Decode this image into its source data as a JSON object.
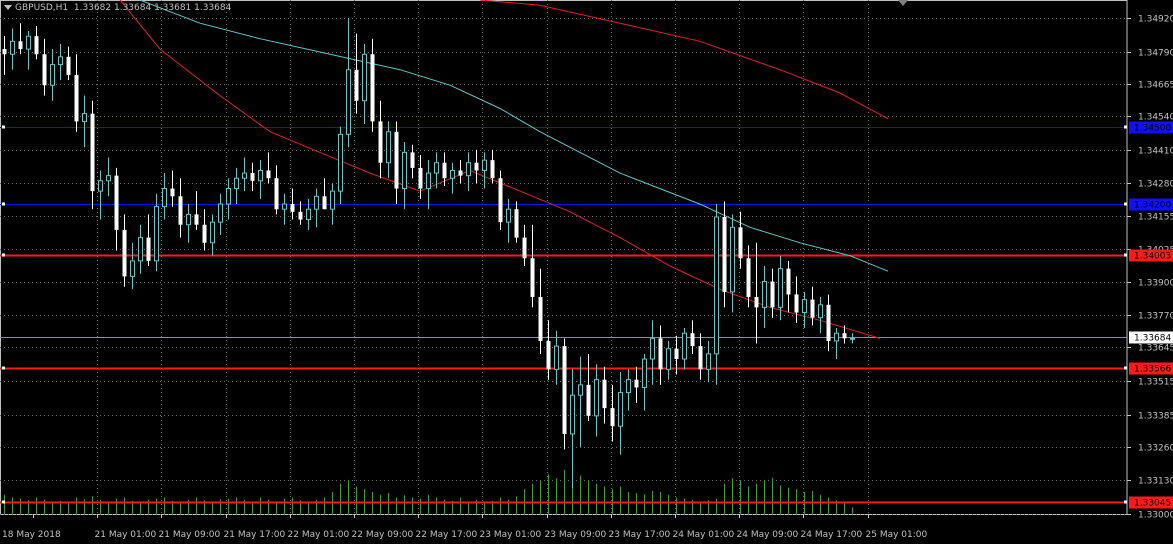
{
  "header": {
    "symbol": "GBPUSD,H1",
    "ohlc": "1.33682 1.33684 1.33681 1.33684"
  },
  "chart_data": {
    "type": "candlestick",
    "symbol": "GBPUSD",
    "timeframe": "H1",
    "ylim": [
      1.33,
      1.3499
    ],
    "yticks": [
      "1.34920",
      "1.34790",
      "1.34665",
      "1.34540",
      "1.34410",
      "1.34280",
      "1.34155",
      "1.34025",
      "1.33900",
      "1.33770",
      "1.33645",
      "1.33515",
      "1.33385",
      "1.33260",
      "1.33130",
      "1.33000"
    ],
    "xticks": [
      "18 May 2018",
      "21 May 01:00",
      "21 May 09:00",
      "21 May 17:00",
      "22 May 01:00",
      "22 May 09:00",
      "22 May 17:00",
      "23 May 01:00",
      "23 May 09:00",
      "23 May 17:00",
      "24 May 01:00",
      "24 May 09:00",
      "24 May 17:00",
      "25 May 01:00"
    ],
    "bar_step_x": 8,
    "current_price": "1.33684",
    "horizontal_lines": [
      {
        "price": 1.345,
        "label": "1.34500",
        "color": "#1010ff"
      },
      {
        "price": 1.342,
        "label": "1.34200",
        "color": "#1010ff"
      },
      {
        "price": 1.34003,
        "label": "1.34003",
        "color": "#ff1a1a"
      },
      {
        "price": 1.33566,
        "label": "1.33566",
        "color": "#ff1a1a"
      },
      {
        "price": 1.33045,
        "label": "1.33045",
        "color": "#ff1a1a"
      }
    ],
    "moving_averages": [
      {
        "color": "#e02020",
        "points": [
          [
            120,
            1.3499
          ],
          [
            160,
            1.348
          ],
          [
            220,
            1.3462
          ],
          [
            270,
            1.3448
          ],
          [
            320,
            1.344
          ],
          [
            370,
            1.3432
          ],
          [
            420,
            1.3425
          ],
          [
            470,
            1.3433
          ],
          [
            520,
            1.3425
          ],
          [
            570,
            1.3417
          ],
          [
            620,
            1.3407
          ],
          [
            670,
            1.3396
          ],
          [
            720,
            1.3387
          ],
          [
            770,
            1.338
          ],
          [
            820,
            1.3375
          ],
          [
            880,
            1.3368
          ]
        ]
      },
      {
        "color": "#e02020",
        "points": [
          [
            480,
            1.3499
          ],
          [
            540,
            1.3497
          ],
          [
            620,
            1.349
          ],
          [
            700,
            1.3483
          ],
          [
            780,
            1.3472
          ],
          [
            840,
            1.3463
          ],
          [
            888,
            1.3453
          ]
        ]
      },
      {
        "color": "#5fc8c8",
        "points": [
          [
            140,
            1.3499
          ],
          [
            200,
            1.349
          ],
          [
            260,
            1.3484
          ],
          [
            330,
            1.3478
          ],
          [
            400,
            1.3472
          ],
          [
            450,
            1.3466
          ],
          [
            500,
            1.3457
          ],
          [
            540,
            1.3448
          ],
          [
            580,
            1.344
          ],
          [
            620,
            1.3432
          ],
          [
            660,
            1.3426
          ],
          [
            700,
            1.342
          ],
          [
            750,
            1.3411
          ],
          [
            800,
            1.3405
          ],
          [
            850,
            1.34
          ],
          [
            888,
            1.3394
          ]
        ]
      }
    ],
    "candles": [
      [
        1.348,
        1.3485,
        1.347,
        1.3478
      ],
      [
        1.3478,
        1.3488,
        1.3472,
        1.3483
      ],
      [
        1.3483,
        1.349,
        1.3478,
        1.348
      ],
      [
        1.348,
        1.3487,
        1.3472,
        1.3485
      ],
      [
        1.3485,
        1.3489,
        1.3476,
        1.3478
      ],
      [
        1.3478,
        1.3484,
        1.3462,
        1.3466
      ],
      [
        1.3466,
        1.348,
        1.346,
        1.3474
      ],
      [
        1.3474,
        1.3482,
        1.3468,
        1.3477
      ],
      [
        1.3477,
        1.3481,
        1.3468,
        1.347
      ],
      [
        1.347,
        1.3478,
        1.3448,
        1.3452
      ],
      [
        1.3452,
        1.3462,
        1.3442,
        1.3455
      ],
      [
        1.3455,
        1.346,
        1.3418,
        1.3425
      ],
      [
        1.3425,
        1.3433,
        1.3414,
        1.3429
      ],
      [
        1.3429,
        1.3438,
        1.3423,
        1.3431
      ],
      [
        1.3431,
        1.3434,
        1.3402,
        1.341
      ],
      [
        1.341,
        1.3416,
        1.3388,
        1.3392
      ],
      [
        1.3392,
        1.3405,
        1.3387,
        1.3398
      ],
      [
        1.3398,
        1.3412,
        1.3393,
        1.3407
      ],
      [
        1.3407,
        1.3416,
        1.3396,
        1.3398
      ],
      [
        1.3398,
        1.3424,
        1.3394,
        1.3419
      ],
      [
        1.3419,
        1.3432,
        1.3414,
        1.3426
      ],
      [
        1.3426,
        1.3433,
        1.3419,
        1.3423
      ],
      [
        1.3423,
        1.343,
        1.3407,
        1.3412
      ],
      [
        1.3412,
        1.342,
        1.3405,
        1.3416
      ],
      [
        1.3416,
        1.3425,
        1.341,
        1.3412
      ],
      [
        1.3412,
        1.3418,
        1.3402,
        1.3405
      ],
      [
        1.3405,
        1.3416,
        1.34,
        1.3413
      ],
      [
        1.3413,
        1.3424,
        1.3408,
        1.342
      ],
      [
        1.342,
        1.343,
        1.3414,
        1.3426
      ],
      [
        1.3426,
        1.3434,
        1.342,
        1.343
      ],
      [
        1.343,
        1.3438,
        1.3425,
        1.3432
      ],
      [
        1.3432,
        1.3436,
        1.3425,
        1.3429
      ],
      [
        1.3429,
        1.3437,
        1.3422,
        1.3433
      ],
      [
        1.3433,
        1.344,
        1.3428,
        1.343
      ],
      [
        1.343,
        1.3435,
        1.3416,
        1.3418
      ],
      [
        1.3418,
        1.3424,
        1.3412,
        1.342
      ],
      [
        1.342,
        1.3426,
        1.3414,
        1.3417
      ],
      [
        1.3417,
        1.3421,
        1.3412,
        1.3414
      ],
      [
        1.3414,
        1.3422,
        1.341,
        1.3418
      ],
      [
        1.3418,
        1.3426,
        1.3411,
        1.3423
      ],
      [
        1.3423,
        1.343,
        1.3418,
        1.3418
      ],
      [
        1.3418,
        1.3428,
        1.3412,
        1.3425
      ],
      [
        1.3425,
        1.345,
        1.342,
        1.3447
      ],
      [
        1.3447,
        1.3492,
        1.3442,
        1.3472
      ],
      [
        1.3472,
        1.3486,
        1.3455,
        1.346
      ],
      [
        1.346,
        1.3482,
        1.3451,
        1.3478
      ],
      [
        1.3478,
        1.3484,
        1.3448,
        1.3452
      ],
      [
        1.3452,
        1.346,
        1.343,
        1.3436
      ],
      [
        1.3436,
        1.3452,
        1.343,
        1.3448
      ],
      [
        1.3448,
        1.3452,
        1.342,
        1.3426
      ],
      [
        1.3426,
        1.3444,
        1.3418,
        1.344
      ],
      [
        1.344,
        1.3443,
        1.343,
        1.3434
      ],
      [
        1.3434,
        1.3439,
        1.3422,
        1.3426
      ],
      [
        1.3426,
        1.3437,
        1.3418,
        1.3432
      ],
      [
        1.3432,
        1.344,
        1.3426,
        1.3436
      ],
      [
        1.3436,
        1.344,
        1.3427,
        1.343
      ],
      [
        1.343,
        1.3436,
        1.3424,
        1.3433
      ],
      [
        1.3433,
        1.3437,
        1.3428,
        1.3431
      ],
      [
        1.3431,
        1.344,
        1.3425,
        1.3436
      ],
      [
        1.3436,
        1.3441,
        1.3428,
        1.3433
      ],
      [
        1.3433,
        1.344,
        1.3426,
        1.3437
      ],
      [
        1.3437,
        1.3441,
        1.3428,
        1.343
      ],
      [
        1.343,
        1.3433,
        1.341,
        1.3413
      ],
      [
        1.3413,
        1.3422,
        1.3405,
        1.3418
      ],
      [
        1.3418,
        1.3421,
        1.3405,
        1.3407
      ],
      [
        1.3407,
        1.3412,
        1.3396,
        1.3399
      ],
      [
        1.3399,
        1.3412,
        1.338,
        1.3384
      ],
      [
        1.3384,
        1.3395,
        1.3362,
        1.3367
      ],
      [
        1.3367,
        1.3375,
        1.3352,
        1.3356
      ],
      [
        1.3356,
        1.3371,
        1.335,
        1.3365
      ],
      [
        1.3365,
        1.3368,
        1.3325,
        1.3331
      ],
      [
        1.3331,
        1.3356,
        1.331,
        1.3346
      ],
      [
        1.3346,
        1.3361,
        1.3326,
        1.335
      ],
      [
        1.335,
        1.3362,
        1.3336,
        1.3338
      ],
      [
        1.3338,
        1.3358,
        1.333,
        1.3352
      ],
      [
        1.3352,
        1.3357,
        1.3335,
        1.3341
      ],
      [
        1.3341,
        1.335,
        1.3328,
        1.3334
      ],
      [
        1.3334,
        1.3355,
        1.3323,
        1.3347
      ],
      [
        1.3347,
        1.3356,
        1.334,
        1.3352
      ],
      [
        1.3352,
        1.3357,
        1.3343,
        1.3349
      ],
      [
        1.3349,
        1.3362,
        1.334,
        1.336
      ],
      [
        1.336,
        1.3375,
        1.335,
        1.3368
      ],
      [
        1.3368,
        1.3373,
        1.335,
        1.3356
      ],
      [
        1.3356,
        1.3367,
        1.3352,
        1.3364
      ],
      [
        1.3364,
        1.3369,
        1.3354,
        1.336
      ],
      [
        1.336,
        1.3372,
        1.3356,
        1.337
      ],
      [
        1.337,
        1.3375,
        1.3362,
        1.3365
      ],
      [
        1.3365,
        1.337,
        1.3352,
        1.3356
      ],
      [
        1.3356,
        1.3367,
        1.3351,
        1.3362
      ],
      [
        1.3362,
        1.342,
        1.335,
        1.3415
      ],
      [
        1.3415,
        1.3421,
        1.338,
        1.3386
      ],
      [
        1.3386,
        1.3416,
        1.3378,
        1.3411
      ],
      [
        1.3411,
        1.3417,
        1.3395,
        1.3399
      ],
      [
        1.3399,
        1.3404,
        1.338,
        1.3384
      ],
      [
        1.3384,
        1.3405,
        1.3366,
        1.338
      ],
      [
        1.338,
        1.3396,
        1.3372,
        1.339
      ],
      [
        1.339,
        1.3395,
        1.3376,
        1.338
      ],
      [
        1.338,
        1.34,
        1.3375,
        1.3395
      ],
      [
        1.3395,
        1.3398,
        1.3378,
        1.3385
      ],
      [
        1.3385,
        1.3392,
        1.3374,
        1.3378
      ],
      [
        1.3378,
        1.3386,
        1.3372,
        1.3383
      ],
      [
        1.3383,
        1.3388,
        1.3373,
        1.3376
      ],
      [
        1.3376,
        1.3384,
        1.337,
        1.3381
      ],
      [
        1.3381,
        1.3385,
        1.3363,
        1.3367
      ],
      [
        1.3367,
        1.3372,
        1.336,
        1.337
      ],
      [
        1.337,
        1.3373,
        1.3366,
        1.3368
      ],
      [
        1.3368,
        1.337,
        1.3366,
        1.3368
      ]
    ],
    "volumes": [
      0.35,
      0.3,
      0.28,
      0.25,
      0.3,
      0.26,
      0.22,
      0.24,
      0.2,
      0.3,
      0.27,
      0.32,
      0.26,
      0.22,
      0.28,
      0.3,
      0.24,
      0.2,
      0.26,
      0.28,
      0.3,
      0.24,
      0.22,
      0.26,
      0.3,
      0.25,
      0.22,
      0.27,
      0.28,
      0.3,
      0.26,
      0.23,
      0.3,
      0.26,
      0.22,
      0.28,
      0.3,
      0.25,
      0.2,
      0.26,
      0.3,
      0.4,
      0.55,
      0.62,
      0.5,
      0.45,
      0.4,
      0.35,
      0.38,
      0.3,
      0.34,
      0.3,
      0.28,
      0.35,
      0.3,
      0.26,
      0.24,
      0.3,
      0.22,
      0.26,
      0.22,
      0.24,
      0.3,
      0.26,
      0.32,
      0.45,
      0.55,
      0.6,
      0.72,
      0.65,
      0.8,
      0.75,
      0.7,
      0.6,
      0.55,
      0.5,
      0.45,
      0.5,
      0.4,
      0.38,
      0.36,
      0.42,
      0.4,
      0.35,
      0.3,
      0.28,
      0.26,
      0.22,
      0.25,
      0.28,
      0.55,
      0.65,
      0.6,
      0.5,
      0.55,
      0.62,
      0.66,
      0.52,
      0.48,
      0.45,
      0.4,
      0.42,
      0.35,
      0.3,
      0.25,
      0.2,
      0.12
    ]
  }
}
